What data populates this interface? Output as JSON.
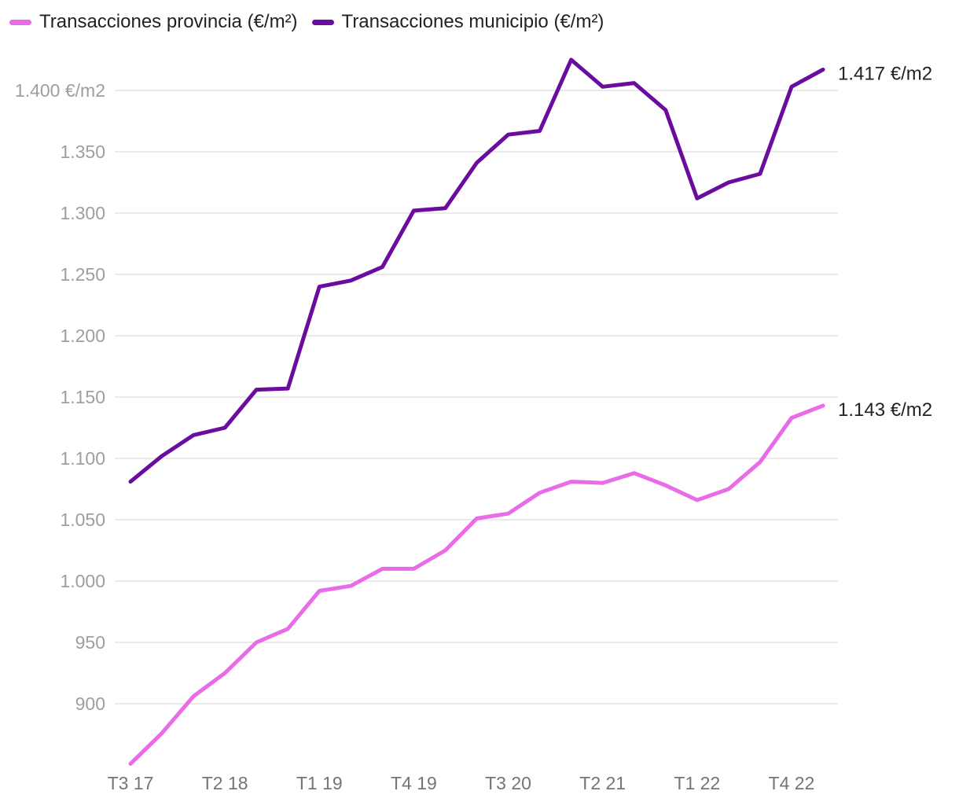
{
  "legend": [
    {
      "name": "Transacciones provincia (€/m²)",
      "color": "#e86be8"
    },
    {
      "name": "Transacciones municipio (€/m²)",
      "color": "#6a0d9e"
    }
  ],
  "chart_data": {
    "type": "line",
    "title": "",
    "xlabel": "",
    "ylabel": "",
    "ylim": [
      850,
      1430
    ],
    "yticks": [
      900,
      950,
      1000,
      1050,
      1100,
      1150,
      1200,
      1250,
      1300,
      1350,
      1400
    ],
    "ytick_labels": [
      "900",
      "950",
      "1.000",
      "1.050",
      "1.100",
      "1.150",
      "1.200",
      "1.250",
      "1.300",
      "1.350",
      "1.400 €/m2"
    ],
    "x": [
      "T3 17",
      "T4 17",
      "T1 18",
      "T2 18",
      "T3 18",
      "T4 18",
      "T1 19",
      "T2 19",
      "T3 19",
      "T4 19",
      "T1 20",
      "T2 20",
      "T3 20",
      "T4 20",
      "T1 21",
      "T2 21",
      "T3 21",
      "T4 21",
      "T1 22",
      "T2 22",
      "T3 22",
      "T4 22",
      "T1 23"
    ],
    "xtick_labels": [
      "T3 17",
      "T2 18",
      "T1 19",
      "T4 19",
      "T3 20",
      "T2 21",
      "T1 22",
      "T4 22"
    ],
    "series": [
      {
        "name": "Transacciones provincia (€/m²)",
        "color": "#e86be8",
        "values": [
          851,
          876,
          906,
          925,
          950,
          961,
          992,
          996,
          1010,
          1010,
          1025,
          1051,
          1055,
          1072,
          1081,
          1080,
          1088,
          1078,
          1066,
          1075,
          1097,
          1133,
          1143
        ],
        "end_label": "1.143 €/m2"
      },
      {
        "name": "Transacciones municipio (€/m²)",
        "color": "#6a0d9e",
        "values": [
          1081,
          1102,
          1119,
          1125,
          1156,
          1157,
          1240,
          1245,
          1256,
          1302,
          1304,
          1341,
          1364,
          1367,
          1425,
          1403,
          1406,
          1384,
          1312,
          1325,
          1332,
          1403,
          1417
        ],
        "end_label": "1.417 €/m2"
      }
    ],
    "grid": true,
    "legend_position": "top-left"
  }
}
